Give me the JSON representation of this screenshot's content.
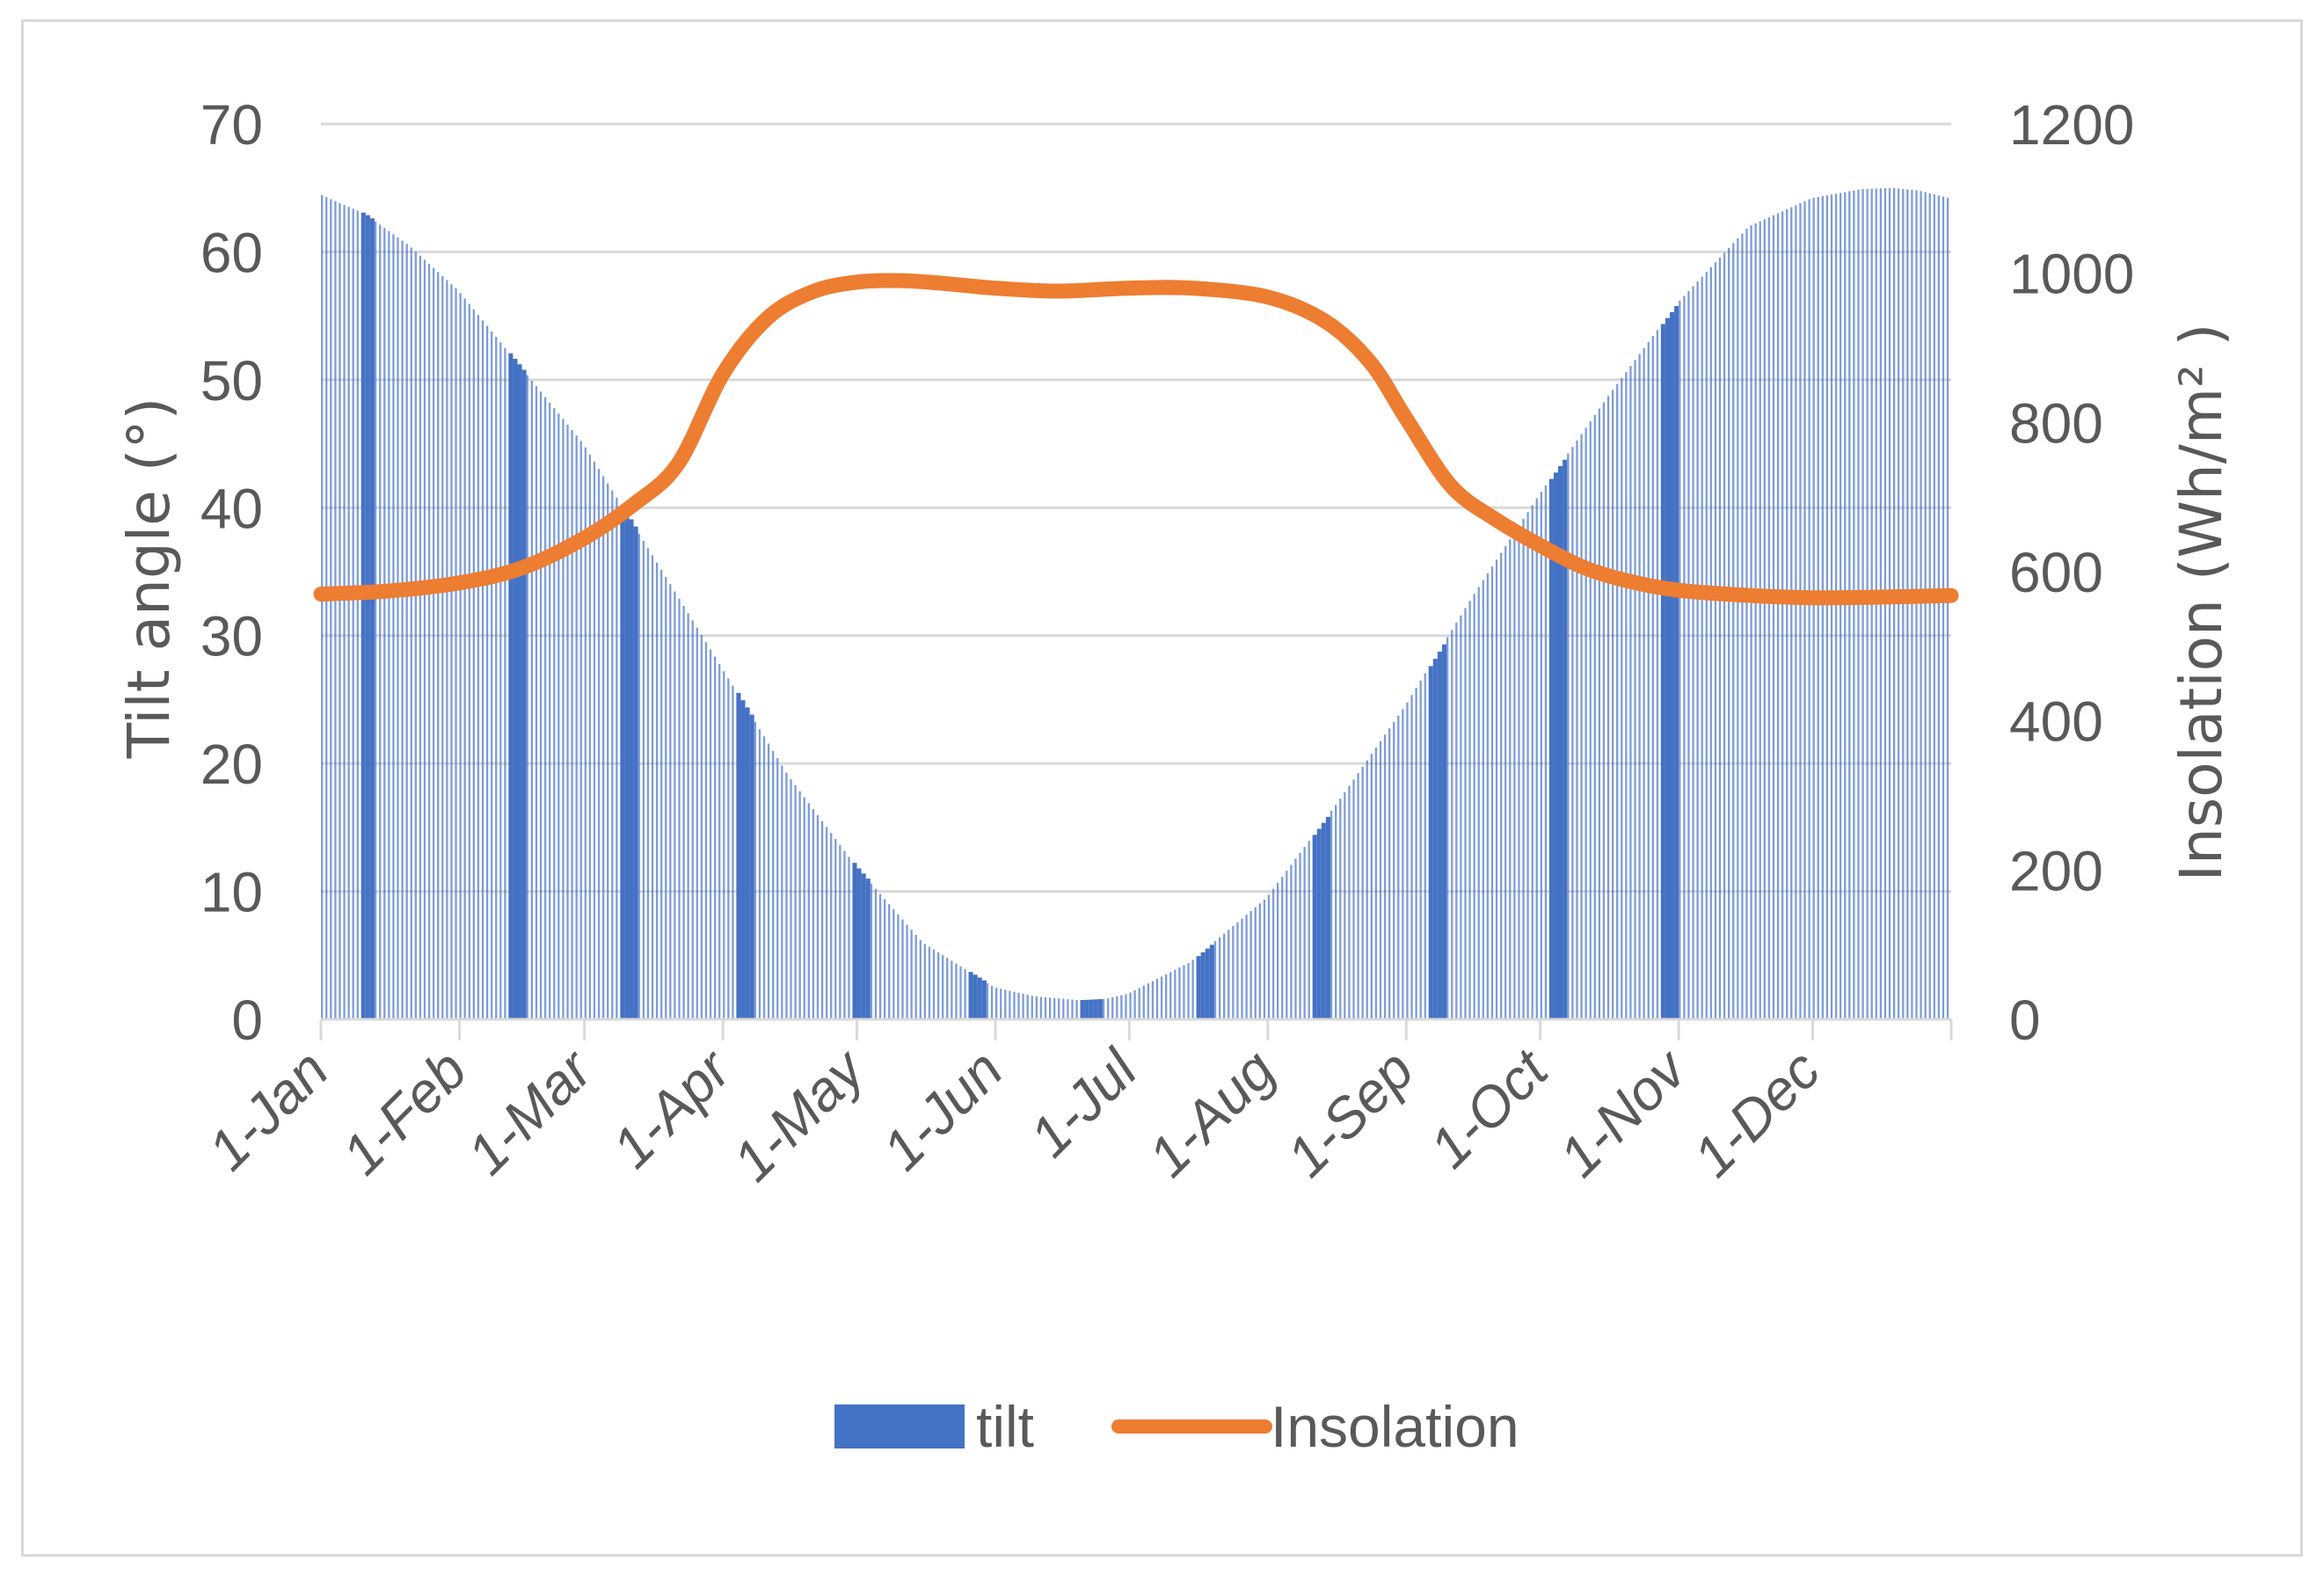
{
  "chart_data": {
    "type": "bar+line",
    "title": "",
    "x_tick_labels": [
      "1-Jan",
      "1-Feb",
      "1-Mar",
      "1-Apr",
      "1-May",
      "1-Jun",
      "1-Jul",
      "1-Aug",
      "1-Sep",
      "1-Oct",
      "1-Nov",
      "1-Dec"
    ],
    "left_axis": {
      "label": "Tilt angle (°)",
      "ylim": [
        0,
        70
      ],
      "ticks": [
        "0",
        "10",
        "20",
        "30",
        "40",
        "50",
        "60",
        "70"
      ],
      "tick_values": [
        0,
        10,
        20,
        30,
        40,
        50,
        60,
        70
      ]
    },
    "right_axis": {
      "label": "Insolation (Wh/m² )",
      "ylim": [
        0,
        1200
      ],
      "ticks": [
        "0",
        "200",
        "400",
        "600",
        "800",
        "1000",
        "1200"
      ],
      "tick_values": [
        0,
        200,
        400,
        600,
        800,
        1000,
        1200
      ]
    },
    "x_domain_days": [
      0,
      365
    ],
    "tick_days": [
      0,
      31,
      59,
      90,
      120,
      151,
      181,
      212,
      243,
      273,
      304,
      334
    ],
    "gridlines": true,
    "legend_position": "bottom",
    "series": [
      {
        "name": "tilt",
        "type": "bar",
        "axis": "left",
        "color": "#4472C4",
        "daily": true,
        "knots_day": [
          0,
          10,
          20,
          31,
          45,
          59,
          75,
          90,
          105,
          120,
          135,
          151,
          160,
          170,
          176,
          181,
          195,
          212,
          228,
          243,
          258,
          273,
          288,
          304,
          320,
          334,
          345,
          352,
          358,
          365
        ],
        "knots_value": [
          64.5,
          63,
          60.5,
          57,
          51,
          45,
          36,
          27.5,
          19,
          12,
          6,
          2.5,
          1.8,
          1.5,
          1.6,
          2,
          4.5,
          9.5,
          17,
          24.5,
          33,
          41,
          48.5,
          56,
          62,
          64.2,
          64.9,
          65,
          64.8,
          64.2
        ],
        "dense_ranges": [
          [
            9,
            11
          ],
          [
            42,
            45
          ],
          [
            67,
            70
          ],
          [
            93,
            96
          ],
          [
            119,
            122
          ],
          [
            145,
            148
          ],
          [
            170,
            174
          ],
          [
            196,
            199
          ],
          [
            222,
            225
          ],
          [
            248,
            251
          ],
          [
            275,
            278
          ],
          [
            300,
            303
          ]
        ]
      },
      {
        "name": "Insolation",
        "type": "line",
        "axis": "right",
        "color": "#ED7D31",
        "points_day": [
          0,
          15,
          31,
          45,
          59,
          70,
          80,
          90,
          100,
          110,
          120,
          130,
          140,
          151,
          165,
          181,
          195,
          212,
          225,
          235,
          243,
          253,
          263,
          273,
          283,
          293,
          304,
          320,
          334,
          350,
          365
        ],
        "points_value": [
          570,
          574,
          585,
          605,
          645,
          690,
          745,
          865,
          940,
          975,
          988,
          990,
          986,
          980,
          976,
          980,
          980,
          968,
          935,
          880,
          805,
          715,
          670,
          635,
          605,
          587,
          575,
          568,
          565,
          566,
          568
        ]
      }
    ]
  }
}
